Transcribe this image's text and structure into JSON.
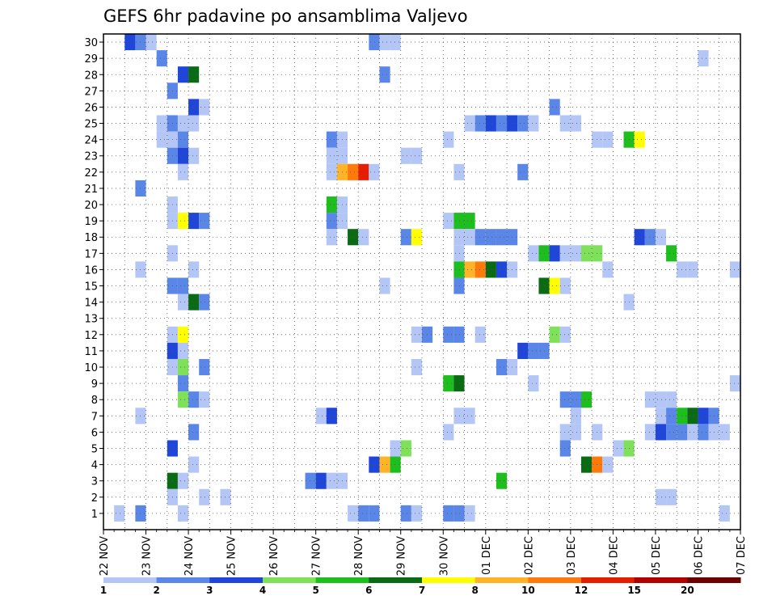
{
  "chart_data": {
    "type": "heatmap",
    "title": "GEFS 6hr padavine po ansamblima Valjevo",
    "xlabel": "",
    "ylabel": "",
    "grid": true,
    "x_tick_labels": [
      "22 NOV",
      "23 NOV",
      "24 NOV",
      "25 NOV",
      "26 NOV",
      "27 NOV",
      "28 NOV",
      "29 NOV",
      "30 NOV",
      "01 DEC",
      "02 DEC",
      "03 DEC",
      "04 DEC",
      "05 DEC",
      "06 DEC",
      "07 DEC"
    ],
    "y_tick_labels": [
      "1",
      "2",
      "3",
      "4",
      "5",
      "6",
      "7",
      "8",
      "9",
      "10",
      "11",
      "12",
      "13",
      "14",
      "15",
      "16",
      "17",
      "18",
      "19",
      "20",
      "21",
      "22",
      "23",
      "24",
      "25",
      "26",
      "27",
      "28",
      "29",
      "30"
    ],
    "members": 30,
    "time_steps": 60,
    "time_step_hours": 6,
    "colorbar": {
      "labels": [
        "1",
        "2",
        "3",
        "4",
        "5",
        "6",
        "7",
        "8",
        "10",
        "12",
        "15",
        "20"
      ],
      "colors": [
        "#b3c6f5",
        "#5a86e8",
        "#1f45d9",
        "#7fe05a",
        "#1fbe1f",
        "#0a6b14",
        "#ffff00",
        "#ffb326",
        "#ff7a0a",
        "#e61e00",
        "#b00000",
        "#6b0000"
      ]
    },
    "cells": [
      [
        2,
        30,
        3
      ],
      [
        3,
        30,
        2
      ],
      [
        4,
        30,
        1
      ],
      [
        25,
        30,
        2
      ],
      [
        26,
        30,
        1
      ],
      [
        27,
        30,
        1
      ],
      [
        5,
        29,
        2
      ],
      [
        56,
        29,
        1
      ],
      [
        7,
        28,
        3
      ],
      [
        8,
        28,
        6
      ],
      [
        26,
        28,
        2
      ],
      [
        6,
        27,
        2
      ],
      [
        8,
        26,
        3
      ],
      [
        9,
        26,
        1
      ],
      [
        42,
        26,
        2
      ],
      [
        5,
        25,
        1
      ],
      [
        6,
        25,
        2
      ],
      [
        7,
        25,
        1
      ],
      [
        8,
        25,
        1
      ],
      [
        34,
        25,
        1
      ],
      [
        35,
        25,
        2
      ],
      [
        36,
        25,
        3
      ],
      [
        37,
        25,
        2
      ],
      [
        38,
        25,
        3
      ],
      [
        39,
        25,
        2
      ],
      [
        40,
        25,
        1
      ],
      [
        43,
        25,
        1
      ],
      [
        44,
        25,
        1
      ],
      [
        5,
        24,
        1
      ],
      [
        6,
        24,
        1
      ],
      [
        7,
        24,
        2
      ],
      [
        21,
        24,
        2
      ],
      [
        22,
        24,
        1
      ],
      [
        32,
        24,
        1
      ],
      [
        46,
        24,
        1
      ],
      [
        47,
        24,
        1
      ],
      [
        49,
        24,
        5
      ],
      [
        50,
        24,
        7
      ],
      [
        6,
        23,
        2
      ],
      [
        7,
        23,
        3
      ],
      [
        8,
        23,
        1
      ],
      [
        21,
        23,
        1
      ],
      [
        22,
        23,
        1
      ],
      [
        28,
        23,
        1
      ],
      [
        29,
        23,
        1
      ],
      [
        7,
        22,
        1
      ],
      [
        21,
        22,
        1
      ],
      [
        22,
        22,
        8
      ],
      [
        23,
        22,
        9
      ],
      [
        24,
        22,
        10
      ],
      [
        25,
        22,
        1
      ],
      [
        33,
        22,
        1
      ],
      [
        39,
        22,
        2
      ],
      [
        3,
        21,
        2
      ],
      [
        6,
        20,
        1
      ],
      [
        21,
        20,
        5
      ],
      [
        22,
        20,
        1
      ],
      [
        6,
        19,
        1
      ],
      [
        7,
        19,
        7
      ],
      [
        8,
        19,
        3
      ],
      [
        9,
        19,
        2
      ],
      [
        21,
        19,
        2
      ],
      [
        22,
        19,
        1
      ],
      [
        32,
        19,
        1
      ],
      [
        33,
        19,
        5
      ],
      [
        34,
        19,
        5
      ],
      [
        21,
        18,
        1
      ],
      [
        23,
        18,
        6
      ],
      [
        24,
        18,
        1
      ],
      [
        28,
        18,
        2
      ],
      [
        29,
        18,
        7
      ],
      [
        33,
        18,
        1
      ],
      [
        34,
        18,
        1
      ],
      [
        35,
        18,
        2
      ],
      [
        36,
        18,
        2
      ],
      [
        37,
        18,
        2
      ],
      [
        38,
        18,
        2
      ],
      [
        50,
        18,
        3
      ],
      [
        51,
        18,
        2
      ],
      [
        52,
        18,
        1
      ],
      [
        6,
        17,
        1
      ],
      [
        33,
        17,
        1
      ],
      [
        40,
        17,
        1
      ],
      [
        41,
        17,
        5
      ],
      [
        42,
        17,
        3
      ],
      [
        43,
        17,
        1
      ],
      [
        44,
        17,
        1
      ],
      [
        45,
        17,
        4
      ],
      [
        46,
        17,
        4
      ],
      [
        53,
        17,
        5
      ],
      [
        3,
        16,
        1
      ],
      [
        8,
        16,
        1
      ],
      [
        33,
        16,
        5
      ],
      [
        34,
        16,
        8
      ],
      [
        35,
        16,
        9
      ],
      [
        36,
        16,
        6
      ],
      [
        37,
        16,
        3
      ],
      [
        38,
        16,
        1
      ],
      [
        47,
        16,
        1
      ],
      [
        54,
        16,
        1
      ],
      [
        55,
        16,
        1
      ],
      [
        59,
        16,
        1
      ],
      [
        6,
        15,
        2
      ],
      [
        7,
        15,
        2
      ],
      [
        26,
        15,
        1
      ],
      [
        33,
        15,
        2
      ],
      [
        41,
        15,
        6
      ],
      [
        42,
        15,
        7
      ],
      [
        43,
        15,
        1
      ],
      [
        7,
        14,
        1
      ],
      [
        8,
        14,
        6
      ],
      [
        9,
        14,
        2
      ],
      [
        49,
        14,
        1
      ],
      [
        6,
        12,
        1
      ],
      [
        7,
        12,
        7
      ],
      [
        29,
        12,
        1
      ],
      [
        30,
        12,
        2
      ],
      [
        32,
        12,
        2
      ],
      [
        33,
        12,
        2
      ],
      [
        35,
        12,
        1
      ],
      [
        42,
        12,
        4
      ],
      [
        43,
        12,
        1
      ],
      [
        6,
        11,
        3
      ],
      [
        7,
        11,
        1
      ],
      [
        39,
        11,
        3
      ],
      [
        40,
        11,
        2
      ],
      [
        41,
        11,
        2
      ],
      [
        6,
        10,
        1
      ],
      [
        7,
        10,
        4
      ],
      [
        9,
        10,
        2
      ],
      [
        29,
        10,
        1
      ],
      [
        37,
        10,
        2
      ],
      [
        38,
        10,
        1
      ],
      [
        7,
        9,
        2
      ],
      [
        32,
        9,
        5
      ],
      [
        33,
        9,
        6
      ],
      [
        40,
        9,
        1
      ],
      [
        59,
        9,
        1
      ],
      [
        7,
        8,
        4
      ],
      [
        8,
        8,
        2
      ],
      [
        9,
        8,
        1
      ],
      [
        43,
        8,
        2
      ],
      [
        44,
        8,
        2
      ],
      [
        45,
        8,
        5
      ],
      [
        51,
        8,
        1
      ],
      [
        52,
        8,
        1
      ],
      [
        53,
        8,
        1
      ],
      [
        3,
        7,
        1
      ],
      [
        20,
        7,
        1
      ],
      [
        21,
        7,
        3
      ],
      [
        33,
        7,
        1
      ],
      [
        34,
        7,
        1
      ],
      [
        44,
        7,
        1
      ],
      [
        52,
        7,
        1
      ],
      [
        53,
        7,
        2
      ],
      [
        54,
        7,
        5
      ],
      [
        55,
        7,
        6
      ],
      [
        56,
        7,
        3
      ],
      [
        57,
        7,
        2
      ],
      [
        8,
        6,
        2
      ],
      [
        32,
        6,
        1
      ],
      [
        44,
        6,
        1
      ],
      [
        43,
        6,
        1
      ],
      [
        46,
        6,
        1
      ],
      [
        51,
        6,
        1
      ],
      [
        52,
        6,
        3
      ],
      [
        53,
        6,
        2
      ],
      [
        54,
        6,
        2
      ],
      [
        55,
        6,
        1
      ],
      [
        56,
        6,
        2
      ],
      [
        57,
        6,
        1
      ],
      [
        58,
        6,
        1
      ],
      [
        6,
        5,
        3
      ],
      [
        27,
        5,
        1
      ],
      [
        28,
        5,
        4
      ],
      [
        43,
        5,
        2
      ],
      [
        48,
        5,
        1
      ],
      [
        49,
        5,
        4
      ],
      [
        8,
        4,
        1
      ],
      [
        25,
        4,
        3
      ],
      [
        26,
        4,
        8
      ],
      [
        27,
        4,
        5
      ],
      [
        45,
        4,
        6
      ],
      [
        46,
        4,
        9
      ],
      [
        47,
        4,
        1
      ],
      [
        6,
        3,
        6
      ],
      [
        7,
        3,
        1
      ],
      [
        19,
        3,
        2
      ],
      [
        20,
        3,
        3
      ],
      [
        21,
        3,
        1
      ],
      [
        22,
        3,
        1
      ],
      [
        37,
        3,
        5
      ],
      [
        6,
        2,
        1
      ],
      [
        9,
        2,
        1
      ],
      [
        11,
        2,
        1
      ],
      [
        52,
        2,
        1
      ],
      [
        53,
        2,
        1
      ],
      [
        1,
        1,
        1
      ],
      [
        3,
        1,
        2
      ],
      [
        7,
        1,
        1
      ],
      [
        23,
        1,
        1
      ],
      [
        24,
        1,
        2
      ],
      [
        25,
        1,
        2
      ],
      [
        28,
        1,
        2
      ],
      [
        29,
        1,
        1
      ],
      [
        32,
        1,
        2
      ],
      [
        33,
        1,
        2
      ],
      [
        34,
        1,
        1
      ],
      [
        58,
        1,
        1
      ]
    ]
  }
}
